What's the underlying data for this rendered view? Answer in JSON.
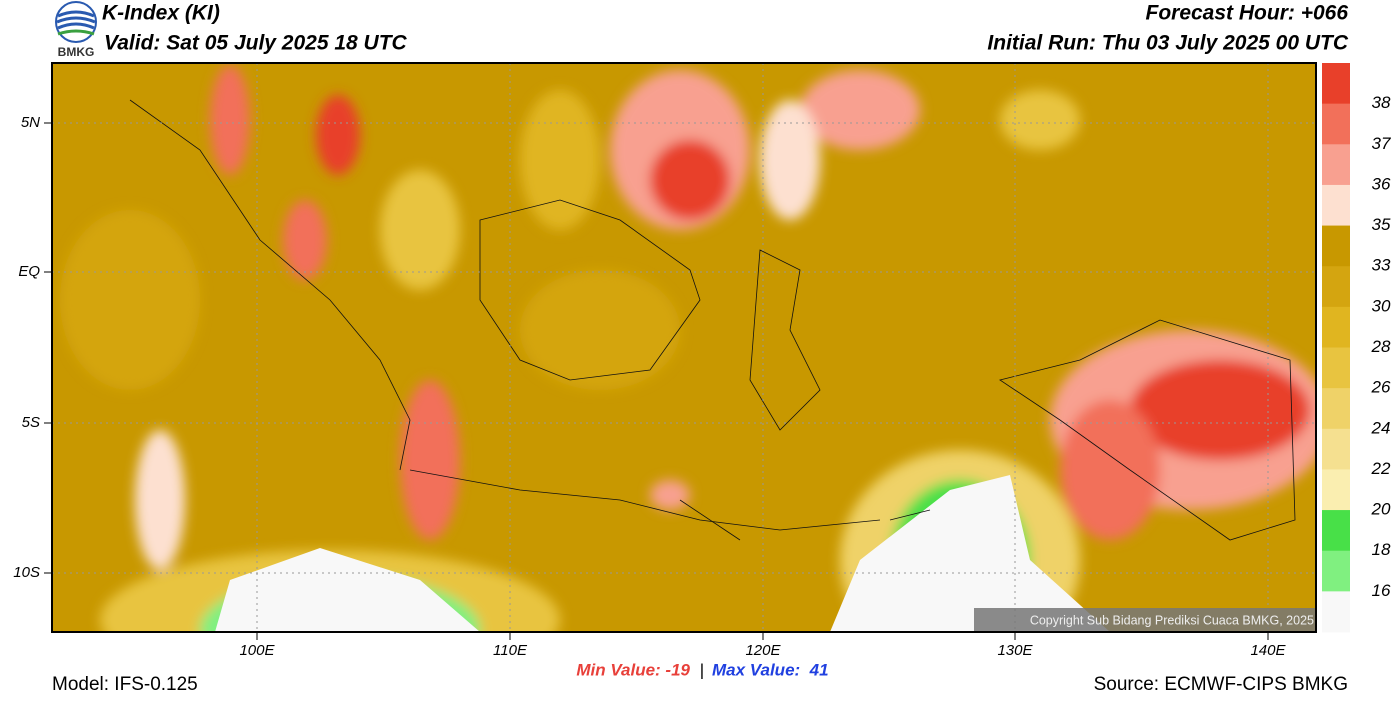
{
  "header": {
    "title": "K-Index (KI)",
    "valid": "Valid: Sat 05 July 2025 18 UTC",
    "forecast_hour": "Forecast Hour: +066",
    "initial_run": "Initial Run: Thu 03 July 2025 00 UTC",
    "logo": "BMKG"
  },
  "map": {
    "lat_labels": [
      "5N",
      "EQ",
      "5S",
      "10S"
    ],
    "lon_labels": [
      "100E",
      "110E",
      "120E",
      "130E",
      "140E"
    ],
    "copyright": "Copyright Sub Bidang Prediksi Cuaca BMKG, 2025"
  },
  "colorbar": {
    "labels": [
      38,
      37,
      36,
      35,
      33,
      30,
      28,
      26,
      24,
      22,
      20,
      18,
      16
    ],
    "colors": [
      "#e8402a",
      "#f2705a",
      "#f8a090",
      "#fde0d0",
      "#c89800",
      "#d4a510",
      "#e0b520",
      "#e8c440",
      "#efd268",
      "#f5e090",
      "#faeeb0",
      "#48e048",
      "#80f080",
      "#f8f8f8"
    ]
  },
  "footer": {
    "min": "Min Value: -19",
    "separator": "|",
    "max": "Max Value:  41",
    "model": "Model: IFS-0.125",
    "source": "Source: ECMWF-CIPS BMKG"
  }
}
